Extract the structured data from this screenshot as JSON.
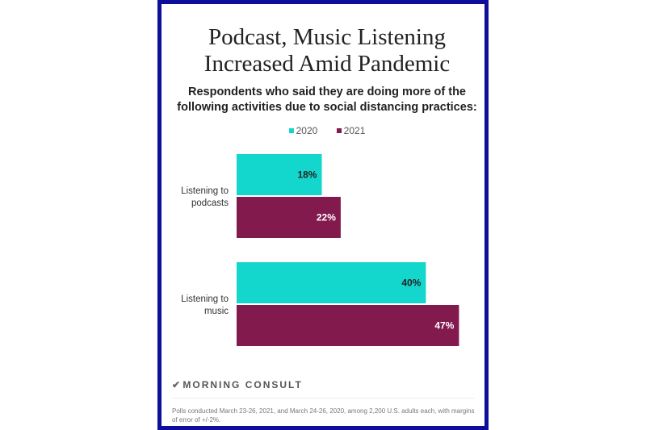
{
  "chart_data": {
    "type": "bar",
    "orientation": "horizontal",
    "title": "Podcast, Music Listening Increased Amid Pandemic",
    "subtitle": "Respondents who said they are doing more of the following activities due to social distancing practices:",
    "categories": [
      "Listening to podcasts",
      "Listening to music"
    ],
    "series": [
      {
        "name": "2020",
        "color": "#13d6cc",
        "values": [
          18,
          40
        ],
        "labels": [
          "18%",
          "40%"
        ]
      },
      {
        "name": "2021",
        "color": "#821a4d",
        "values": [
          22,
          47
        ],
        "labels": [
          "22%",
          "47%"
        ]
      }
    ],
    "legend_position": "top",
    "grid": false,
    "unit": "%"
  },
  "brand": "MORNING CONSULT",
  "note": "Polls conducted March 23-26, 2021, and March 24-26, 2020, among 2,200 U.S. adults each, with margins of error of +/-2%."
}
